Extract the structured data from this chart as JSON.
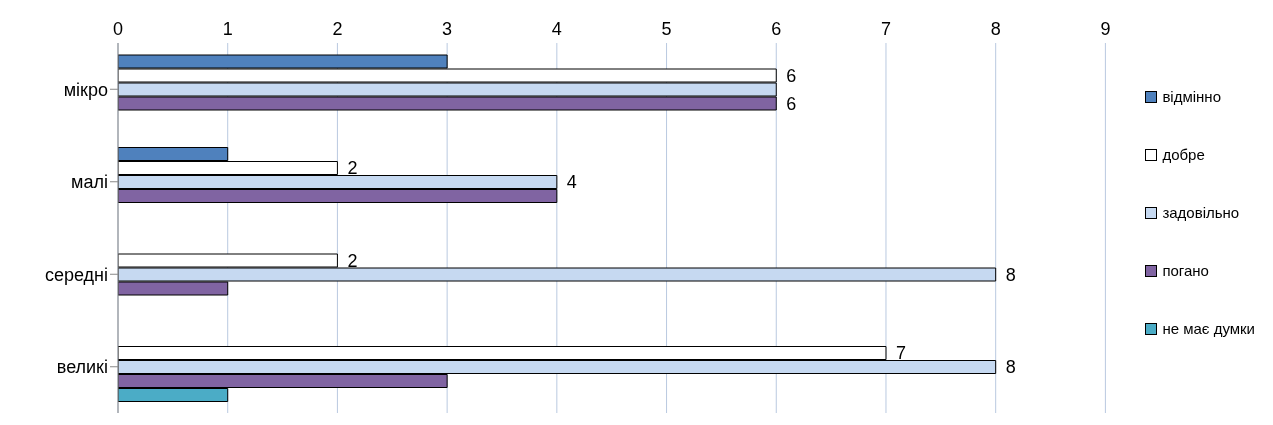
{
  "chart_data": {
    "type": "bar",
    "orientation": "horizontal",
    "categories": [
      "мікро",
      "малі",
      "середні",
      "великі"
    ],
    "series": [
      {
        "name": "відмінно",
        "color": "#4f81bd",
        "values": [
          3,
          1,
          null,
          null
        ]
      },
      {
        "name": "добре",
        "color": "#ffffff",
        "values": [
          6,
          2,
          2,
          7
        ],
        "value_labels": [
          "6",
          "2",
          "2",
          "7"
        ]
      },
      {
        "name": "задовільно",
        "color": "#c6d9f1",
        "values": [
          6,
          4,
          8,
          8
        ],
        "value_labels": [
          null,
          "4",
          "8",
          "8"
        ]
      },
      {
        "name": "погано",
        "color": "#8064a2",
        "values": [
          6,
          4,
          1,
          3
        ],
        "value_labels": [
          "6",
          null,
          null,
          null
        ]
      },
      {
        "name": "не має думки",
        "color": "#4bacc6",
        "values": [
          null,
          null,
          null,
          1
        ]
      }
    ],
    "xlim": [
      0,
      9
    ],
    "xticks": [
      0,
      1,
      2,
      3,
      4,
      5,
      6,
      7,
      8,
      9
    ],
    "grid": "x",
    "legend": "right"
  }
}
